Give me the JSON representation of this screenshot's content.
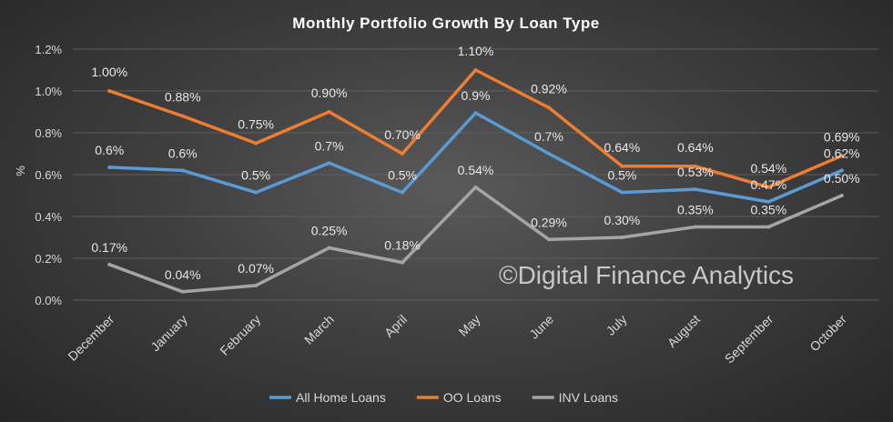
{
  "chart_data": {
    "type": "line",
    "title": "Monthly  Portfolio  Growth  By  Loan  Type",
    "xlabel": "",
    "ylabel": "%",
    "ylim": [
      0,
      1.2
    ],
    "y_ticks": [
      "0.0%",
      "0.2%",
      "0.4%",
      "0.6%",
      "0.8%",
      "1.0%",
      "1.2%"
    ],
    "grid": true,
    "legend_position": "bottom",
    "watermark": "©Digital Finance Analytics",
    "categories": [
      "December",
      "January",
      "February",
      "March",
      "April",
      "May",
      "June",
      "July",
      "August",
      "September",
      "October"
    ],
    "series": [
      {
        "name": "All Home Loans",
        "color": "#5b9bd5",
        "values": [
          0.635,
          0.62,
          0.515,
          0.655,
          0.515,
          0.895,
          0.7,
          0.515,
          0.53,
          0.47,
          0.62
        ],
        "labels": [
          "0.6%",
          "0.6%",
          "0.5%",
          "0.7%",
          "0.5%",
          "0.9%",
          "0.7%",
          "0.5%",
          "0.53%",
          "0.47%",
          "0.62%"
        ]
      },
      {
        "name": "OO Loans",
        "color": "#ed7d31",
        "values": [
          1.0,
          0.88,
          0.75,
          0.9,
          0.7,
          1.1,
          0.92,
          0.64,
          0.64,
          0.54,
          0.69
        ],
        "labels": [
          "1.00%",
          "0.88%",
          "0.75%",
          "0.90%",
          "0.70%",
          "1.10%",
          "0.92%",
          "0.64%",
          "0.64%",
          "0.54%",
          "0.69%"
        ]
      },
      {
        "name": "INV Loans",
        "color": "#a5a5a5",
        "values": [
          0.17,
          0.04,
          0.07,
          0.25,
          0.18,
          0.54,
          0.29,
          0.3,
          0.35,
          0.35,
          0.5
        ],
        "labels": [
          "0.17%",
          "0.04%",
          "0.07%",
          "0.25%",
          "0.18%",
          "0.54%",
          "0.29%",
          "0.30%",
          "0.35%",
          "0.35%",
          "0.50%"
        ]
      }
    ]
  }
}
